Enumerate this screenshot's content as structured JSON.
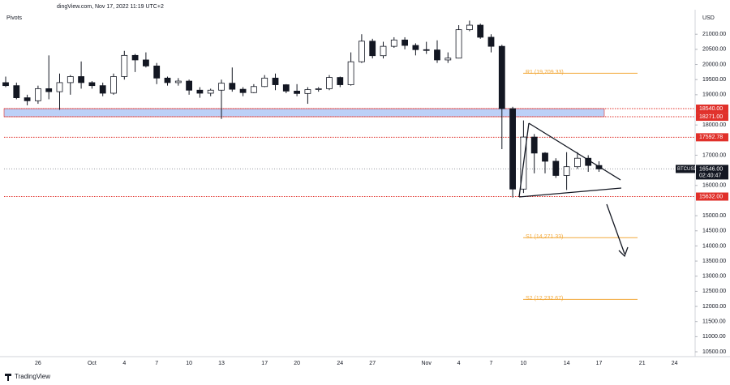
{
  "chart_data": {
    "type": "candlestick",
    "header": "dingView.com, Nov 17, 2022 11:19 UTC+2",
    "indicator": "Pivots",
    "currency": "USD",
    "footer": "TradingView",
    "categories": [
      null,
      null,
      null,
      "26",
      null,
      null,
      null,
      null,
      "Oct",
      null,
      null,
      "4",
      null,
      null,
      "7",
      null,
      null,
      "10",
      null,
      null,
      "13",
      null,
      null,
      null,
      "17",
      null,
      null,
      "20",
      null,
      null,
      null,
      "24",
      null,
      null,
      "27",
      null,
      null,
      null,
      null,
      "Nov",
      null,
      null,
      "4",
      null,
      null,
      "7",
      null,
      null,
      "10",
      null,
      null,
      null,
      "14",
      null,
      null,
      "17",
      null,
      null,
      null,
      "21",
      null,
      null,
      "24",
      null,
      null
    ],
    "open": [
      19400,
      19300,
      18900,
      18800,
      19200,
      19100,
      19400,
      19600,
      19400,
      19300,
      19050,
      19600,
      20300,
      20150,
      19950,
      19550,
      19400,
      19450,
      19150,
      19050,
      19150,
      19380,
      19180,
      19070,
      19270,
      19550,
      19330,
      19120,
      19040,
      19170,
      19200,
      19570,
      19330,
      20090,
      20770,
      20290,
      20600,
      20810,
      20630,
      20490,
      20480,
      20150,
      20210,
      21150,
      21300,
      20900,
      20600,
      18540,
      15880,
      17600,
      17070,
      16800,
      16330,
      16620,
      16900,
      16660,
      null,
      null,
      null,
      null,
      null,
      null,
      null,
      null,
      null
    ],
    "high": [
      19600,
      19400,
      19000,
      19300,
      20300,
      19700,
      19650,
      20100,
      19450,
      19400,
      19700,
      20450,
      20350,
      20400,
      20050,
      19600,
      19550,
      19500,
      19250,
      19200,
      19500,
      19900,
      19250,
      19350,
      19650,
      19700,
      19350,
      19350,
      19250,
      19250,
      19650,
      19600,
      20400,
      21000,
      20850,
      20750,
      20900,
      20900,
      20700,
      20750,
      20800,
      20400,
      21300,
      21450,
      21350,
      21000,
      20650,
      18600,
      18150,
      17700,
      17100,
      16900,
      17100,
      17100,
      17000,
      16800,
      null,
      null,
      null,
      null,
      null,
      null,
      null,
      null,
      null
    ],
    "low": [
      19250,
      18850,
      18650,
      18700,
      18850,
      18500,
      19000,
      19200,
      19200,
      18950,
      19000,
      19500,
      19750,
      19900,
      19350,
      19300,
      19300,
      19000,
      18900,
      18950,
      18200,
      19100,
      18950,
      19050,
      19250,
      19150,
      19050,
      18950,
      18700,
      19100,
      19150,
      19250,
      19300,
      20050,
      20200,
      20200,
      20550,
      20500,
      20300,
      20350,
      20050,
      20050,
      20200,
      21100,
      20850,
      20400,
      17200,
      15600,
      15750,
      16400,
      16400,
      16250,
      15850,
      16550,
      16450,
      16450,
      null,
      null,
      null,
      null,
      null,
      null,
      null,
      null,
      null
    ],
    "close": [
      19300,
      18900,
      18800,
      19200,
      19100,
      19400,
      19600,
      19400,
      19300,
      19050,
      19600,
      20300,
      20150,
      19950,
      19550,
      19400,
      19450,
      19150,
      19050,
      19150,
      19380,
      19180,
      19070,
      19270,
      19550,
      19330,
      19120,
      19040,
      19170,
      19200,
      19570,
      19330,
      20090,
      20770,
      20290,
      20600,
      20810,
      20630,
      20490,
      20480,
      20150,
      20210,
      21150,
      21300,
      20900,
      20600,
      18540,
      15880,
      17600,
      17070,
      16800,
      16330,
      16620,
      16900,
      16660,
      16546,
      null,
      null,
      null,
      null,
      null,
      null,
      null,
      null,
      null
    ],
    "ylim": [
      10340,
      21810
    ],
    "yticks": [
      {
        "value": 21000,
        "label": "21000.00"
      },
      {
        "value": 20500,
        "label": "20500.00"
      },
      {
        "value": 20000,
        "label": "20000.00"
      },
      {
        "value": 19500,
        "label": "19500.00"
      },
      {
        "value": 19000,
        "label": "19000.00"
      },
      {
        "value": 18000,
        "label": "18000.00"
      },
      {
        "value": 17000,
        "label": "17000.00"
      },
      {
        "value": 16000,
        "label": "16000.00"
      },
      {
        "value": 15000,
        "label": "15000.00"
      },
      {
        "value": 14500,
        "label": "14500.00"
      },
      {
        "value": 14000,
        "label": "14000.00"
      },
      {
        "value": 13500,
        "label": "13500.00"
      },
      {
        "value": 13000,
        "label": "13000.00"
      },
      {
        "value": 12500,
        "label": "12500.00"
      },
      {
        "value": 12000,
        "label": "12000.00"
      },
      {
        "value": 11500,
        "label": "11500.00"
      },
      {
        "value": 11000,
        "label": "11000.00"
      },
      {
        "value": 10500,
        "label": "10500.00"
      }
    ],
    "levels": [
      {
        "value": 18540,
        "label": "18540.00",
        "color": "#e0302a"
      },
      {
        "value": 18271,
        "label": "18271.00",
        "color": "#e0302a"
      },
      {
        "value": 17592.78,
        "label": "17592.78",
        "color": "#e0302a"
      },
      {
        "value": 15632,
        "label": "15632.00",
        "color": "#e0302a"
      }
    ],
    "zone_color": "#bcd0f7",
    "current": {
      "name": "BTCUSD",
      "value": 16546,
      "label": "16546.00",
      "countdown": "02:40:47",
      "color": "#131722"
    },
    "pivots": [
      {
        "value": 19709.33,
        "label": "R1 (19,709.33)"
      },
      {
        "value": 14271.33,
        "label": "S1 (14,271.33)"
      },
      {
        "value": 12232.67,
        "label": "S2 (12,232.67)"
      }
    ],
    "pivot_color": "#f2a93b",
    "up_color": "#ffffff",
    "down_color": "#131722"
  }
}
